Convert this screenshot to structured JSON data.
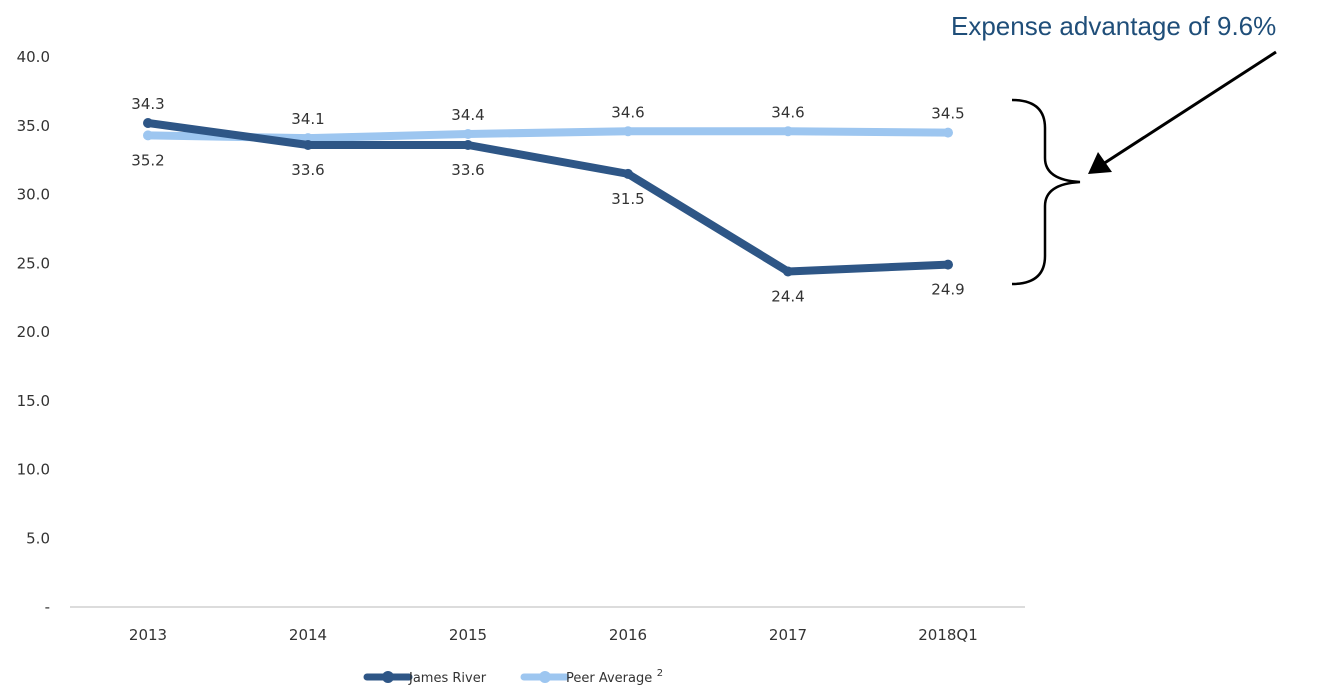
{
  "chart_data": {
    "type": "line",
    "categories": [
      "2013",
      "2014",
      "2015",
      "2016",
      "2017",
      "2018Q1"
    ],
    "series": [
      {
        "name": "James River",
        "values": [
          35.2,
          33.6,
          33.6,
          31.5,
          24.4,
          24.9
        ],
        "color": "#2e5686"
      },
      {
        "name": "Peer Average",
        "name_superscript": "2",
        "values": [
          34.3,
          34.1,
          34.4,
          34.6,
          34.6,
          34.5
        ],
        "color": "#9dc6f0"
      }
    ],
    "y_ticks": [
      "-",
      "5.0",
      "10.0",
      "15.0",
      "20.0",
      "25.0",
      "30.0",
      "35.0",
      "40.0"
    ],
    "ylim": [
      0,
      40
    ],
    "grid": false,
    "legend_position": "bottom",
    "annotation": {
      "text": "Expense advantage of 9.6%",
      "color": "#1f4e79"
    }
  }
}
